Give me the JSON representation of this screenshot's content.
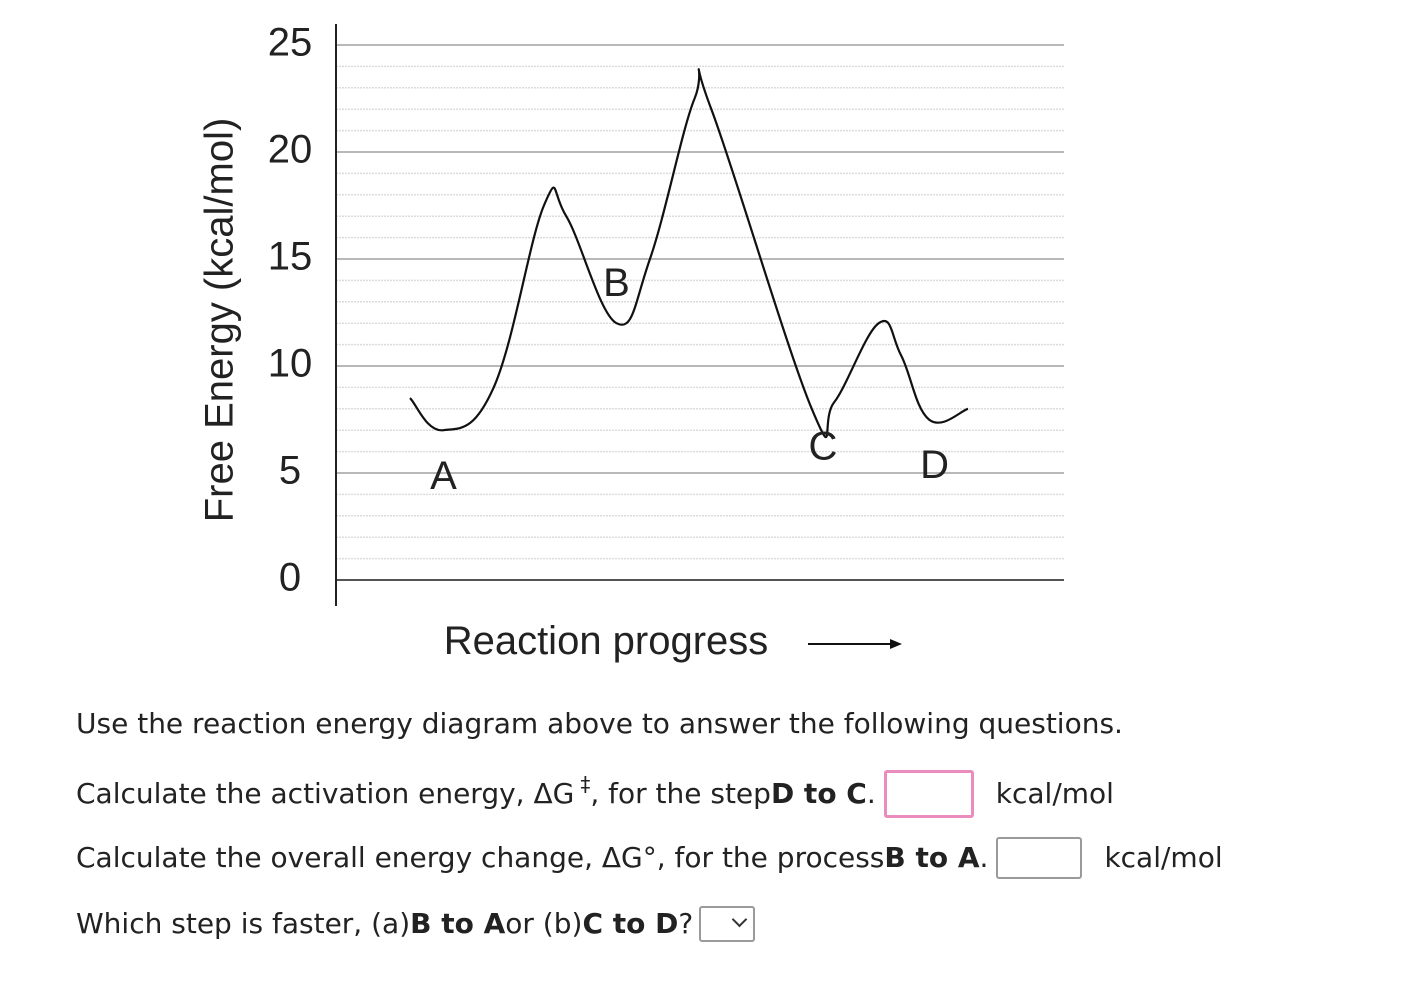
{
  "chart_data": {
    "type": "line",
    "ylabel": "Free Energy (kcal/mol)",
    "xlabel": "Reaction progress",
    "ylim": [
      0,
      25
    ],
    "yticks": [
      0,
      5,
      10,
      15,
      20,
      25
    ],
    "grid": true,
    "x_arrow": true,
    "curve": [
      {
        "x": 0.0,
        "y": 8.5
      },
      {
        "x": 0.06,
        "y": 7.0
      },
      {
        "x": 0.15,
        "y": 9.0
      },
      {
        "x": 0.24,
        "y": 17.5
      },
      {
        "x": 0.28,
        "y": 17.0
      },
      {
        "x": 0.37,
        "y": 12.0
      },
      {
        "x": 0.43,
        "y": 15.0
      },
      {
        "x": 0.51,
        "y": 22.5
      },
      {
        "x": 0.54,
        "y": 22.0
      },
      {
        "x": 0.72,
        "y": 8.0
      },
      {
        "x": 0.76,
        "y": 8.3
      },
      {
        "x": 0.84,
        "y": 12.0
      },
      {
        "x": 0.88,
        "y": 10.5
      },
      {
        "x": 0.93,
        "y": 7.5
      },
      {
        "x": 1.0,
        "y": 8.0
      }
    ],
    "points": [
      {
        "label": "A",
        "x": 0.06,
        "y": 7.0
      },
      {
        "label": "B",
        "x": 0.37,
        "y": 12.0
      },
      {
        "label": "C",
        "x": 0.74,
        "y": 8.0
      },
      {
        "label": "D",
        "x": 0.94,
        "y": 7.6
      }
    ]
  },
  "questions": {
    "intro": "Use the reaction energy diagram above to answer the following questions.",
    "q1": {
      "prefix": "Calculate the activation energy, ΔG",
      "symbol": "‡",
      "middle": ", for the step ",
      "bold": "D to C",
      "suffix": ".",
      "unit": "kcal/mol"
    },
    "q2": {
      "prefix": "Calculate the overall energy change, ΔG°, for the process ",
      "bold": "B to A",
      "suffix": ".",
      "unit": "kcal/mol"
    },
    "q3": {
      "prefix": "Which step is faster, (a) ",
      "bold_a": "B to A",
      "middle": " or (b) ",
      "bold_b": "C to D",
      "suffix": "?"
    }
  },
  "colors": {
    "active_border": "#ea8cbd",
    "box_border": "#9a9a9a"
  }
}
